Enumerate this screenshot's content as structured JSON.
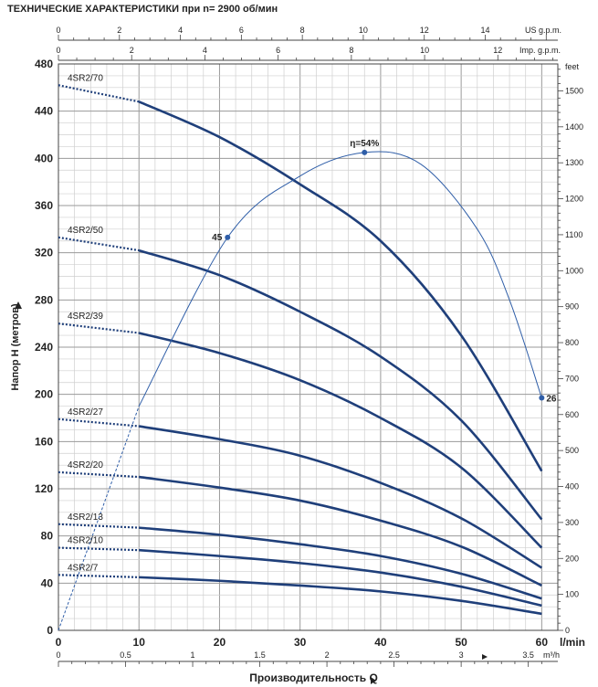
{
  "title": "ТЕХНИЧЕСКИЕ ХАРАКТЕРИСТИКИ при n= 2900 об/мин",
  "chart_data": {
    "type": "line",
    "title": "ТЕХНИЧЕСКИЕ ХАРАКТЕРИСТИКИ при n= 2900 об/мин",
    "xlabel": "Производительность Q",
    "xunit": "l/min",
    "ylabel": "Напор H (метров)",
    "xlim": [
      0,
      62
    ],
    "ylim": [
      0,
      480
    ],
    "x_ticks": [
      0,
      10,
      20,
      30,
      40,
      50,
      60
    ],
    "y_ticks": [
      0,
      40,
      80,
      120,
      160,
      200,
      240,
      280,
      320,
      360,
      400,
      440,
      480
    ],
    "m3h_label": "m³/h",
    "m3h_ticks": [
      "0",
      "0.5",
      "1",
      "1.5",
      "2",
      "2.5",
      "3",
      "3.5"
    ],
    "us_gpm_label": "US g.p.m.",
    "us_gpm_ticks": [
      "0",
      "2",
      "4",
      "6",
      "8",
      "10",
      "12",
      "14"
    ],
    "imp_gpm_label": "Imp. g.p.m.",
    "imp_gpm_ticks": [
      "0",
      "2",
      "4",
      "6",
      "8",
      "10",
      "12"
    ],
    "feet_label": "feet",
    "feet_ticks": [
      "0",
      "100",
      "200",
      "300",
      "400",
      "500",
      "600",
      "700",
      "800",
      "900",
      "1000",
      "1100",
      "1200",
      "1300",
      "1400",
      "1500"
    ],
    "series": [
      {
        "name": "4SR2/70",
        "x": [
          0,
          10,
          20,
          30,
          40,
          50,
          60
        ],
        "y": [
          462,
          448,
          418,
          378,
          330,
          250,
          135
        ],
        "dashed_until": 10
      },
      {
        "name": "4SR2/50",
        "x": [
          0,
          10,
          20,
          30,
          40,
          50,
          60
        ],
        "y": [
          333,
          322,
          301,
          270,
          232,
          178,
          94
        ],
        "dashed_until": 10
      },
      {
        "name": "4SR2/39",
        "x": [
          0,
          10,
          20,
          30,
          40,
          50,
          60
        ],
        "y": [
          260,
          252,
          235,
          212,
          180,
          138,
          70
        ],
        "dashed_until": 10
      },
      {
        "name": "4SR2/27",
        "x": [
          0,
          10,
          20,
          30,
          40,
          50,
          60
        ],
        "y": [
          179,
          173,
          162,
          148,
          125,
          95,
          53
        ],
        "dashed_until": 10
      },
      {
        "name": "4SR2/20",
        "x": [
          0,
          10,
          20,
          30,
          40,
          50,
          60
        ],
        "y": [
          134,
          130,
          121,
          110,
          93,
          71,
          38
        ],
        "dashed_until": 10
      },
      {
        "name": "4SR2/13",
        "x": [
          0,
          10,
          20,
          30,
          40,
          50,
          60
        ],
        "y": [
          90,
          87,
          81,
          73,
          63,
          48,
          27
        ],
        "dashed_until": 10
      },
      {
        "name": "4SR2/10",
        "x": [
          0,
          10,
          20,
          30,
          40,
          50,
          60
        ],
        "y": [
          70,
          68,
          63,
          57,
          49,
          37,
          21
        ],
        "dashed_until": 10
      },
      {
        "name": "4SR2/7",
        "x": [
          0,
          10,
          20,
          30,
          40,
          50,
          60
        ],
        "y": [
          47,
          45,
          42,
          38,
          33,
          25,
          14
        ],
        "dashed_until": 10
      }
    ],
    "efficiency": {
      "x": [
        0,
        10,
        21,
        30,
        38,
        45,
        52,
        56,
        60
      ],
      "y": [
        0,
        190,
        333,
        385,
        405,
        395,
        340,
        280,
        197
      ],
      "labels": [
        {
          "text": "45",
          "x": 21,
          "y": 333
        },
        {
          "text": "η=54%",
          "x": 38,
          "y": 405
        },
        {
          "text": "26",
          "x": 60,
          "y": 197
        }
      ]
    }
  }
}
